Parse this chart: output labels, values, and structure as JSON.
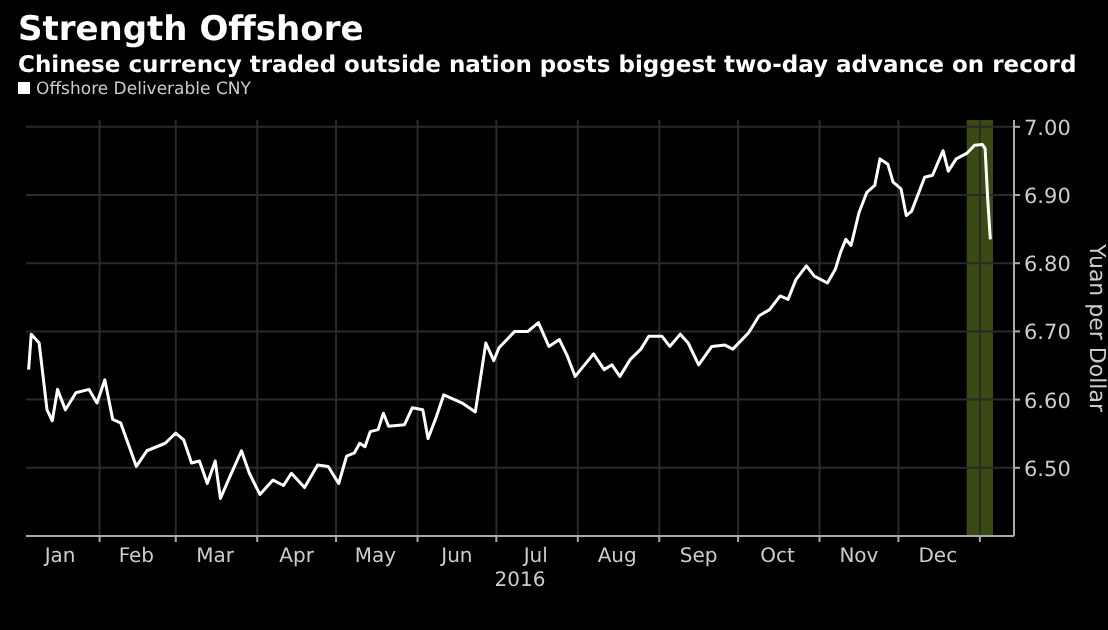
{
  "chart_data": {
    "type": "line",
    "title": "Strength Offshore",
    "subtitle": "Chinese currency traded outside nation posts biggest two-day advance on record",
    "xlabel": "2016",
    "ylabel": "Yuan per Dollar",
    "legend": "top left",
    "grid": true,
    "xlim": [
      "2016-01-04",
      "2017-01-14"
    ],
    "ylim": [
      6.4,
      7.01
    ],
    "yticks": [
      {
        "value": 6.5,
        "label": "6.50"
      },
      {
        "value": 6.6,
        "label": "6.60"
      },
      {
        "value": 6.7,
        "label": "6.70"
      },
      {
        "value": 6.8,
        "label": "6.80"
      },
      {
        "value": 6.9,
        "label": "6.90"
      },
      {
        "value": 7.0,
        "label": "7.00"
      }
    ],
    "xticks": [
      {
        "value": "2016-02-01",
        "label": null
      },
      {
        "value": "2016-03-01",
        "label": null
      },
      {
        "value": "2016-04-01",
        "label": null
      },
      {
        "value": "2016-05-01",
        "label": null
      },
      {
        "value": "2016-06-01",
        "label": null
      },
      {
        "value": "2016-07-01",
        "label": null
      },
      {
        "value": "2016-08-01",
        "label": null
      },
      {
        "value": "2016-09-01",
        "label": null
      },
      {
        "value": "2016-10-01",
        "label": null
      },
      {
        "value": "2016-11-01",
        "label": null
      },
      {
        "value": "2016-12-01",
        "label": null
      },
      {
        "value": "2017-01-01",
        "label": null
      },
      {
        "value": "2016-01-17",
        "label": "Jan"
      },
      {
        "value": "2016-02-15",
        "label": "Feb"
      },
      {
        "value": "2016-03-16",
        "label": "Mar"
      },
      {
        "value": "2016-04-16",
        "label": "Apr"
      },
      {
        "value": "2016-05-16",
        "label": "May"
      },
      {
        "value": "2016-06-16",
        "label": "Jun"
      },
      {
        "value": "2016-07-16",
        "label": "Jul"
      },
      {
        "value": "2016-08-16",
        "label": "Aug"
      },
      {
        "value": "2016-09-16",
        "label": "Sep"
      },
      {
        "value": "2016-10-16",
        "label": "Oct"
      },
      {
        "value": "2016-11-16",
        "label": "Nov"
      },
      {
        "value": "2016-12-16",
        "label": "Dec"
      }
    ],
    "bands": [
      {
        "axis": "x",
        "from": "2016-12-27",
        "to": "2017-01-06",
        "color": "#3b4a12"
      }
    ],
    "series": [
      {
        "name": "Offshore Deliverable CNY",
        "color": "#ffffff",
        "x": [
          "2016-01-05",
          "2016-01-06",
          "2016-01-09",
          "2016-01-12",
          "2016-01-14",
          "2016-01-16",
          "2016-01-19",
          "2016-01-23",
          "2016-01-28",
          "2016-01-31",
          "2016-02-03",
          "2016-02-06",
          "2016-02-09",
          "2016-02-15",
          "2016-02-19",
          "2016-02-26",
          "2016-03-01",
          "2016-03-04",
          "2016-03-07",
          "2016-03-10",
          "2016-03-13",
          "2016-03-16",
          "2016-03-18",
          "2016-03-21",
          "2016-03-26",
          "2016-03-29",
          "2016-04-02",
          "2016-04-07",
          "2016-04-11",
          "2016-04-14",
          "2016-04-19",
          "2016-04-24",
          "2016-04-28",
          "2016-05-02",
          "2016-05-05",
          "2016-05-08",
          "2016-05-10",
          "2016-05-12",
          "2016-05-14",
          "2016-05-17",
          "2016-05-19",
          "2016-05-21",
          "2016-05-27",
          "2016-05-30",
          "2016-06-03",
          "2016-06-05",
          "2016-06-08",
          "2016-06-11",
          "2016-06-18",
          "2016-06-23",
          "2016-06-27",
          "2016-06-30",
          "2016-07-02",
          "2016-07-08",
          "2016-07-13",
          "2016-07-17",
          "2016-07-21",
          "2016-07-25",
          "2016-07-28",
          "2016-07-31",
          "2016-08-07",
          "2016-08-11",
          "2016-08-14",
          "2016-08-17",
          "2016-08-21",
          "2016-08-25",
          "2016-08-28",
          "2016-09-02",
          "2016-09-05",
          "2016-09-09",
          "2016-09-12",
          "2016-09-16",
          "2016-09-21",
          "2016-09-26",
          "2016-09-29",
          "2016-10-05",
          "2016-10-09",
          "2016-10-13",
          "2016-10-17",
          "2016-10-20",
          "2016-10-23",
          "2016-10-27",
          "2016-10-30",
          "2016-11-04",
          "2016-11-07",
          "2016-11-09",
          "2016-11-11",
          "2016-11-13",
          "2016-11-16",
          "2016-11-19",
          "2016-11-22",
          "2016-11-24",
          "2016-11-27",
          "2016-11-29",
          "2016-12-02",
          "2016-12-04",
          "2016-12-06",
          "2016-12-11",
          "2016-12-14",
          "2016-12-18",
          "2016-12-20",
          "2016-12-23",
          "2016-12-27",
          "2016-12-30",
          "2017-01-02",
          "2017-01-03",
          "2017-01-04",
          "2017-01-05"
        ],
        "values": [
          6.644,
          6.696,
          6.683,
          6.585,
          6.569,
          6.615,
          6.585,
          6.61,
          6.615,
          6.595,
          6.629,
          6.571,
          6.566,
          6.502,
          6.525,
          6.536,
          6.551,
          6.541,
          6.507,
          6.51,
          6.477,
          6.51,
          6.455,
          6.482,
          6.525,
          6.492,
          6.461,
          6.482,
          6.474,
          6.492,
          6.471,
          6.504,
          6.502,
          6.477,
          6.517,
          6.522,
          6.536,
          6.531,
          6.553,
          6.556,
          6.58,
          6.561,
          6.563,
          6.588,
          6.585,
          6.543,
          6.573,
          6.607,
          6.595,
          6.582,
          6.683,
          6.657,
          6.676,
          6.7,
          6.7,
          6.713,
          6.678,
          6.688,
          6.664,
          6.634,
          6.667,
          6.644,
          6.651,
          6.634,
          6.659,
          6.674,
          6.693,
          6.693,
          6.678,
          6.696,
          6.683,
          6.651,
          6.678,
          6.68,
          6.674,
          6.698,
          6.723,
          6.732,
          6.752,
          6.747,
          6.776,
          6.796,
          6.781,
          6.771,
          6.791,
          6.816,
          6.835,
          6.826,
          6.874,
          6.904,
          6.914,
          6.953,
          6.945,
          6.919,
          6.909,
          6.87,
          6.876,
          6.926,
          6.929,
          6.965,
          6.935,
          6.953,
          6.961,
          6.973,
          6.974,
          6.968,
          6.894,
          6.835
        ]
      }
    ]
  }
}
